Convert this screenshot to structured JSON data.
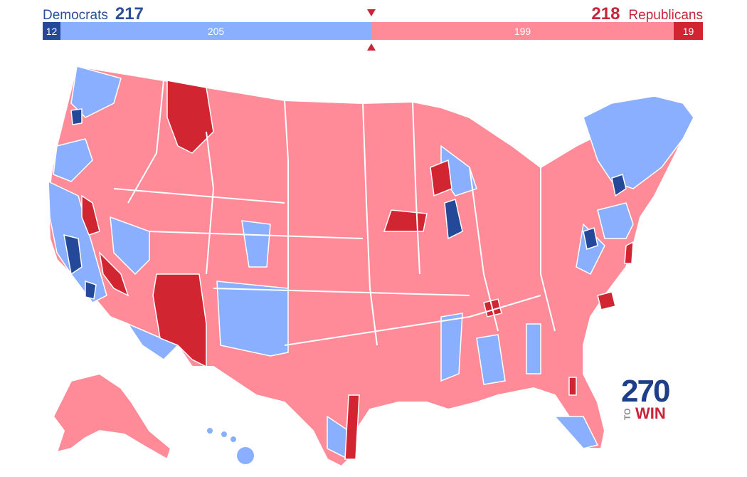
{
  "democrats": {
    "label": "Democrats",
    "total": "217",
    "safe": "12",
    "lean": "205",
    "color": "#2a4e9a"
  },
  "republicans": {
    "label": "Republicans",
    "total": "218",
    "safe": "19",
    "lean": "199",
    "color": "#c8243a"
  },
  "colors": {
    "safe_d": "#244999",
    "lean_d": "#8aafff",
    "lean_r": "#ff8b98",
    "safe_r": "#d22532"
  },
  "logo": {
    "number": "270",
    "to": "TO",
    "win": "WIN"
  }
}
